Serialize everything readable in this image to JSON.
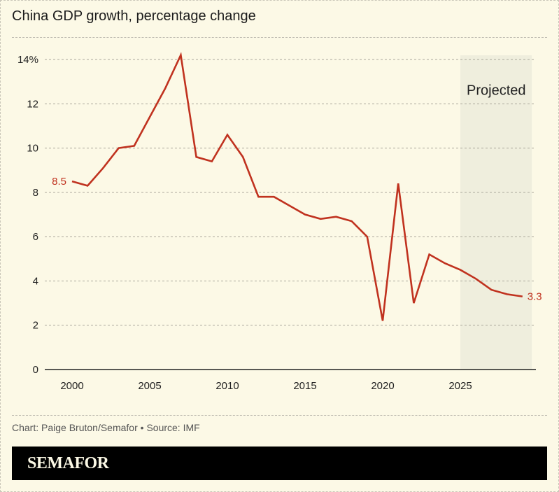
{
  "header": {
    "title": "China GDP growth, percentage change"
  },
  "footer": {
    "credit": "Chart: Paige Bruton/Semafor • Source: IMF",
    "brand": "SEMAFOR"
  },
  "colors": {
    "line": "#c0321f",
    "projected_band": "#efeedd",
    "background": "#fcf9e6"
  },
  "chart_data": {
    "type": "line",
    "title": "China GDP growth, percentage change",
    "xlabel": "",
    "ylabel": "",
    "x": [
      2000,
      2001,
      2002,
      2003,
      2004,
      2005,
      2006,
      2007,
      2008,
      2009,
      2010,
      2011,
      2012,
      2013,
      2014,
      2015,
      2016,
      2017,
      2018,
      2019,
      2020,
      2021,
      2022,
      2023,
      2024,
      2025,
      2026,
      2027,
      2028,
      2029
    ],
    "series": [
      {
        "name": "GDP growth",
        "values": [
          8.5,
          8.3,
          9.1,
          10.0,
          10.1,
          11.4,
          12.7,
          14.2,
          9.6,
          9.4,
          10.6,
          9.6,
          7.8,
          7.8,
          7.4,
          7.0,
          6.8,
          6.9,
          6.7,
          6.0,
          2.2,
          8.4,
          3.0,
          5.2,
          4.8,
          4.5,
          4.1,
          3.6,
          3.4,
          3.3
        ]
      }
    ],
    "xlim": [
      1998.2,
      2029.8
    ],
    "ylim": [
      0,
      14
    ],
    "yticks": [
      0,
      2,
      4,
      6,
      8,
      10,
      12,
      14
    ],
    "ytick_labels": [
      "0",
      "2",
      "4",
      "6",
      "8",
      "10",
      "12",
      "14%"
    ],
    "xticks": [
      2000,
      2005,
      2010,
      2015,
      2020,
      2025
    ],
    "xtick_labels": [
      "2000",
      "2005",
      "2010",
      "2015",
      "2020",
      "2025"
    ],
    "projected_range": [
      2025,
      2029.6
    ],
    "projected_label": "Projected",
    "annotations": [
      {
        "x": 2000,
        "y": 8.5,
        "text": "8.5",
        "side": "left"
      },
      {
        "x": 2029,
        "y": 3.3,
        "text": "3.3",
        "side": "right"
      }
    ],
    "grid": true
  }
}
